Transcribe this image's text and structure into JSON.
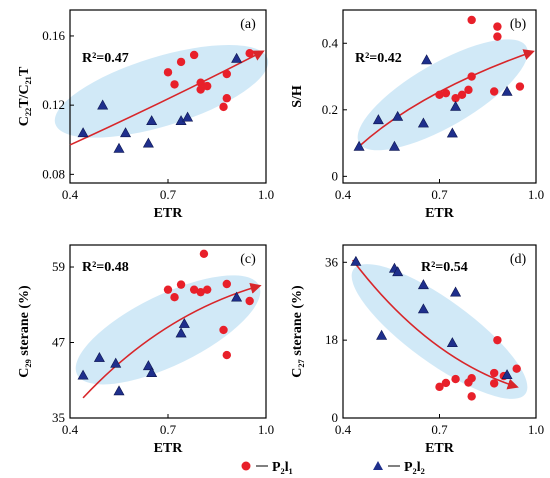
{
  "colors": {
    "p2l1": "#e8202a",
    "p2l2": "#1f2f8c",
    "ellipse": "#c6e4f5",
    "arrow": "#d8262a"
  },
  "legend": [
    {
      "label": "P₂l₁",
      "marker": "circle"
    },
    {
      "label": "P₂l₂",
      "marker": "triangle"
    }
  ],
  "chart_data": [
    {
      "type": "scatter",
      "panel": "(a)",
      "xlabel": "ETR",
      "ylabel": "C₂₂T/C₂₁T",
      "r2": "R²=0.47",
      "xlim": [
        0.4,
        1.0
      ],
      "ylim": [
        0.075,
        0.175
      ],
      "xticks": [
        "0.4",
        "0.7",
        "1.0"
      ],
      "yticks": [
        {
          "v": 0.08,
          "t": "0.08"
        },
        {
          "v": 0.12,
          "t": "0.12"
        },
        {
          "v": 0.16,
          "t": "0.16"
        }
      ],
      "trend": {
        "from": [
          0.4,
          0.097
        ],
        "ctrl": [
          0.68,
          0.121
        ],
        "to": [
          0.99,
          0.151
        ]
      },
      "ellipse": {
        "cx": 0.68,
        "cy": 0.128,
        "rx": 0.34,
        "ry": 0.02,
        "rot": -17
      },
      "series": [
        {
          "name": "P₂l₁",
          "points": [
            [
              0.7,
              0.139
            ],
            [
              0.72,
              0.132
            ],
            [
              0.74,
              0.145
            ],
            [
              0.78,
              0.149
            ],
            [
              0.8,
              0.133
            ],
            [
              0.8,
              0.129
            ],
            [
              0.82,
              0.131
            ],
            [
              0.87,
              0.119
            ],
            [
              0.88,
              0.124
            ],
            [
              0.88,
              0.138
            ],
            [
              0.95,
              0.15
            ]
          ]
        },
        {
          "name": "P₂l₂",
          "points": [
            [
              0.44,
              0.104
            ],
            [
              0.5,
              0.12
            ],
            [
              0.55,
              0.095
            ],
            [
              0.57,
              0.104
            ],
            [
              0.64,
              0.098
            ],
            [
              0.65,
              0.111
            ],
            [
              0.74,
              0.111
            ],
            [
              0.76,
              0.113
            ],
            [
              0.91,
              0.147
            ]
          ]
        }
      ]
    },
    {
      "type": "scatter",
      "panel": "(b)",
      "xlabel": "ETR",
      "ylabel": "S/H",
      "r2": "R²=0.42",
      "xlim": [
        0.4,
        1.0
      ],
      "ylim": [
        -0.02,
        0.5
      ],
      "xticks": [
        "0.4",
        "0.7",
        "1.0"
      ],
      "yticks": [
        {
          "v": 0.0,
          "t": "0"
        },
        {
          "v": 0.2,
          "t": "0.2"
        },
        {
          "v": 0.4,
          "t": "0.4"
        }
      ],
      "trend": {
        "from": [
          0.45,
          0.09
        ],
        "ctrl": [
          0.64,
          0.255
        ],
        "to": [
          0.99,
          0.375
        ]
      },
      "ellipse": {
        "cx": 0.71,
        "cy": 0.245,
        "rx": 0.3,
        "ry": 0.095,
        "rot": -30
      },
      "series": [
        {
          "name": "P₂l₁",
          "points": [
            [
              0.7,
              0.245
            ],
            [
              0.72,
              0.25
            ],
            [
              0.75,
              0.235
            ],
            [
              0.77,
              0.245
            ],
            [
              0.79,
              0.26
            ],
            [
              0.8,
              0.3
            ],
            [
              0.8,
              0.47
            ],
            [
              0.88,
              0.45
            ],
            [
              0.88,
              0.42
            ],
            [
              0.87,
              0.255
            ],
            [
              0.95,
              0.27
            ]
          ]
        },
        {
          "name": "P₂l₂",
          "points": [
            [
              0.45,
              0.09
            ],
            [
              0.51,
              0.17
            ],
            [
              0.56,
              0.09
            ],
            [
              0.57,
              0.18
            ],
            [
              0.65,
              0.16
            ],
            [
              0.66,
              0.35
            ],
            [
              0.74,
              0.13
            ],
            [
              0.75,
              0.21
            ],
            [
              0.91,
              0.255
            ]
          ]
        }
      ]
    },
    {
      "type": "scatter",
      "panel": "(c)",
      "xlabel": "ETR",
      "ylabel": "C₂₉ sterane (%)",
      "r2": "R²=0.48",
      "xlim": [
        0.4,
        1.0
      ],
      "ylim": [
        35,
        62.5
      ],
      "xticks": [
        "0.4",
        "0.7",
        "1.0"
      ],
      "yticks": [
        {
          "v": 35,
          "t": "35"
        },
        {
          "v": 47,
          "t": "47"
        },
        {
          "v": 59,
          "t": "59"
        }
      ],
      "trend": {
        "from": [
          0.44,
          38.2
        ],
        "ctrl": [
          0.68,
          51.5
        ],
        "to": [
          0.98,
          56.0
        ]
      },
      "ellipse": {
        "cx": 0.7,
        "cy": 49,
        "rx": 0.31,
        "ry": 5.6,
        "rot": -26
      },
      "series": [
        {
          "name": "P₂l₁",
          "points": [
            [
              0.7,
              55.4
            ],
            [
              0.72,
              54.2
            ],
            [
              0.74,
              56.2
            ],
            [
              0.78,
              55.4
            ],
            [
              0.8,
              55.0
            ],
            [
              0.81,
              61.1
            ],
            [
              0.82,
              55.4
            ],
            [
              0.87,
              49.0
            ],
            [
              0.88,
              56.3
            ],
            [
              0.88,
              45.0
            ],
            [
              0.95,
              53.6
            ]
          ]
        },
        {
          "name": "P₂l₂",
          "points": [
            [
              0.44,
              41.8
            ],
            [
              0.49,
              44.6
            ],
            [
              0.54,
              43.7
            ],
            [
              0.55,
              39.3
            ],
            [
              0.64,
              43.3
            ],
            [
              0.65,
              42.2
            ],
            [
              0.74,
              48.5
            ],
            [
              0.75,
              50.0
            ],
            [
              0.91,
              54.2
            ]
          ]
        }
      ]
    },
    {
      "type": "scatter",
      "panel": "(d)",
      "xlabel": "ETR",
      "ylabel": "C₂₇ sterane (%)",
      "r2": "R²=0.54",
      "xlim": [
        0.4,
        1.0
      ],
      "ylim": [
        0,
        40
      ],
      "xticks": [
        "0.4",
        "0.7",
        "1.0"
      ],
      "yticks": [
        {
          "v": 0,
          "t": "0"
        },
        {
          "v": 18,
          "t": "18"
        },
        {
          "v": 36,
          "t": "36"
        }
      ],
      "trend": {
        "from": [
          0.43,
          36.5
        ],
        "ctrl": [
          0.66,
          14.0
        ],
        "to": [
          0.94,
          7.2
        ]
      },
      "ellipse": {
        "cx": 0.7,
        "cy": 20,
        "rx": 0.33,
        "ry": 7.3,
        "rot": 36
      },
      "series": [
        {
          "name": "P₂l₁",
          "points": [
            [
              0.7,
              7.2
            ],
            [
              0.72,
              8.1
            ],
            [
              0.75,
              9.0
            ],
            [
              0.79,
              8.2
            ],
            [
              0.8,
              9.2
            ],
            [
              0.8,
              5.0
            ],
            [
              0.87,
              10.4
            ],
            [
              0.87,
              8.0
            ],
            [
              0.88,
              18.0
            ],
            [
              0.9,
              9.7
            ],
            [
              0.94,
              11.4
            ]
          ]
        },
        {
          "name": "P₂l₂",
          "points": [
            [
              0.44,
              36.2
            ],
            [
              0.52,
              19.1
            ],
            [
              0.56,
              34.6
            ],
            [
              0.57,
              33.8
            ],
            [
              0.65,
              25.2
            ],
            [
              0.65,
              30.8
            ],
            [
              0.75,
              29.1
            ],
            [
              0.74,
              17.4
            ],
            [
              0.91,
              10.0
            ]
          ]
        }
      ]
    }
  ]
}
